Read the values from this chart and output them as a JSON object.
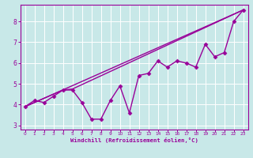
{
  "xlabel": "Windchill (Refroidissement éolien,°C)",
  "xlim": [
    -0.5,
    23.5
  ],
  "ylim": [
    2.8,
    8.8
  ],
  "yticks": [
    3,
    4,
    5,
    6,
    7,
    8
  ],
  "xticks": [
    0,
    1,
    2,
    3,
    4,
    5,
    6,
    7,
    8,
    9,
    10,
    11,
    12,
    13,
    14,
    15,
    16,
    17,
    18,
    19,
    20,
    21,
    22,
    23
  ],
  "bg_color": "#c8e8e8",
  "line_color": "#990099",
  "grid_color": "#ffffff",
  "line_width": 1.0,
  "marker": "D",
  "marker_size": 2.5,
  "series1_x": [
    0,
    23
  ],
  "series1_y": [
    3.9,
    8.55
  ],
  "series2_x": [
    0,
    4,
    5,
    23
  ],
  "series2_y": [
    3.9,
    4.7,
    4.75,
    8.55
  ],
  "data_x": [
    0,
    1,
    2,
    3,
    4,
    5,
    6,
    7,
    8,
    9,
    10,
    11,
    12,
    13,
    14,
    15,
    16,
    17,
    18,
    19,
    20,
    21,
    22,
    23
  ],
  "data_y": [
    3.9,
    4.2,
    4.1,
    4.4,
    4.7,
    4.7,
    4.1,
    3.3,
    3.3,
    4.2,
    4.9,
    3.6,
    5.4,
    5.5,
    6.1,
    5.8,
    6.1,
    6.0,
    5.8,
    6.9,
    6.3,
    6.5,
    8.0,
    8.55
  ]
}
